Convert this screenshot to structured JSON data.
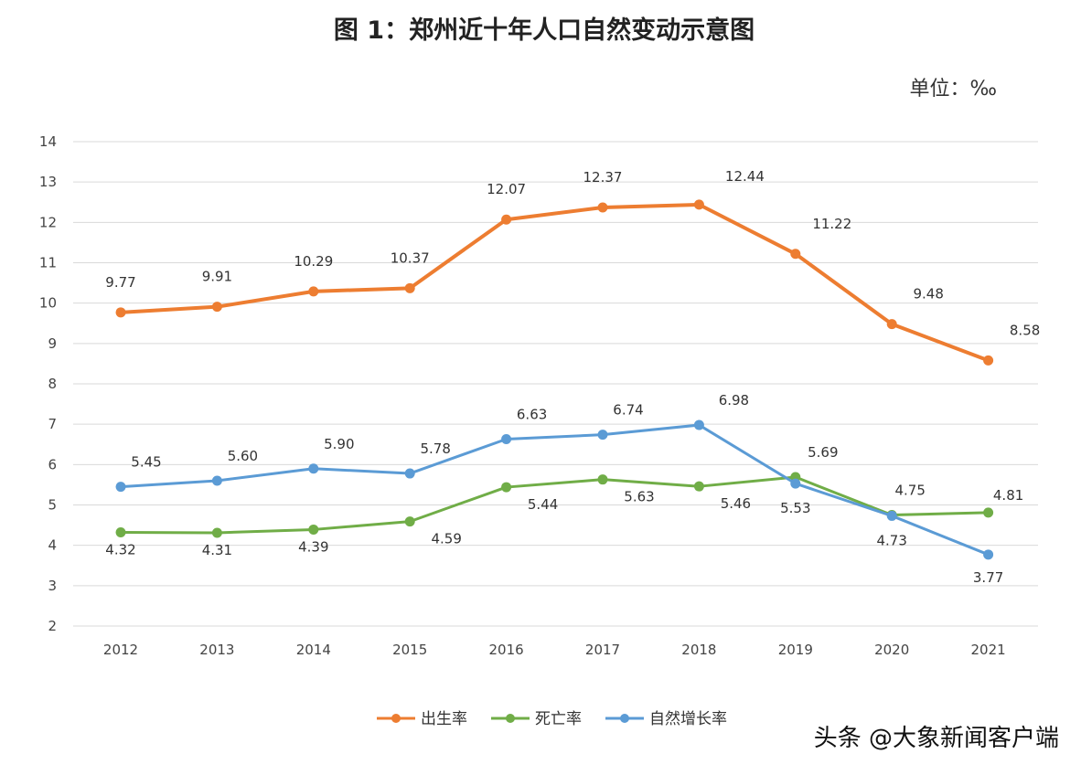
{
  "chart_data": {
    "type": "line",
    "title": "图 1：郑州近十年人口自然变动示意图",
    "unit": "单位：‰",
    "categories": [
      "2012",
      "2013",
      "2014",
      "2015",
      "2016",
      "2017",
      "2018",
      "2019",
      "2020",
      "2021"
    ],
    "ylim": [
      2,
      14
    ],
    "yticks": [
      2,
      3,
      4,
      5,
      6,
      7,
      8,
      9,
      10,
      11,
      12,
      13,
      14
    ],
    "grid": true,
    "legend_position": "bottom",
    "series": [
      {
        "name": "出生率",
        "color": "#ed7d31",
        "values": [
          9.77,
          9.91,
          10.29,
          10.37,
          12.07,
          12.37,
          12.44,
          11.22,
          9.48,
          8.58
        ],
        "labels": [
          "9.77",
          "9.91",
          "10.29",
          "10.37",
          "12.07",
          "12.37",
          "12.44",
          "11.22",
          "9.48",
          "8.58"
        ]
      },
      {
        "name": "死亡率",
        "color": "#70ad47",
        "values": [
          4.32,
          4.31,
          4.39,
          4.59,
          5.44,
          5.63,
          5.46,
          5.69,
          4.75,
          4.81
        ],
        "labels": [
          "4.32",
          "4.31",
          "4.39",
          "4.59",
          "5.44",
          "5.63",
          "5.46",
          "5.69",
          "4.75",
          "4.81"
        ]
      },
      {
        "name": "自然增长率",
        "color": "#5b9bd5",
        "values": [
          5.45,
          5.6,
          5.9,
          5.78,
          6.63,
          6.74,
          6.98,
          5.53,
          4.73,
          3.77
        ],
        "labels": [
          "5.45",
          "5.60",
          "5.90",
          "5.78",
          "6.63",
          "6.74",
          "6.98",
          "5.53",
          "4.73",
          "3.77"
        ]
      }
    ]
  },
  "watermark": {
    "text": "头条 @大象新闻客户端"
  }
}
